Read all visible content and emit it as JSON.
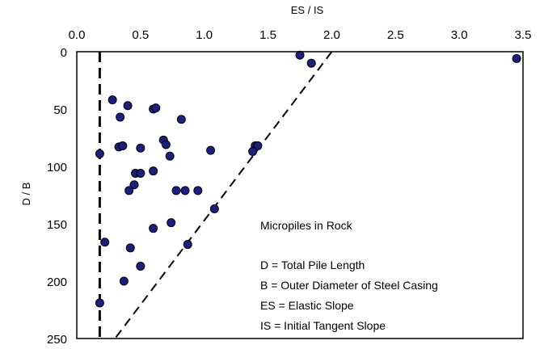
{
  "chart_data": {
    "type": "scatter",
    "title": "",
    "xlabel": "ES / IS",
    "ylabel": "D / B",
    "xlim": [
      0.0,
      3.5
    ],
    "ylim": [
      0,
      250
    ],
    "x_axis_position": "top",
    "y_axis_inverted": true,
    "grid": false,
    "x_ticks": [
      "0.0",
      "0.5",
      "1.0",
      "1.5",
      "2.0",
      "2.5",
      "3.0",
      "3.5"
    ],
    "y_ticks": [
      "0",
      "50",
      "100",
      "150",
      "200",
      "250"
    ],
    "marker_color": "#1a1f80",
    "marker_edge_color": "#000000",
    "points": [
      {
        "x": 1.75,
        "y": 3
      },
      {
        "x": 1.84,
        "y": 10
      },
      {
        "x": 3.45,
        "y": 6
      },
      {
        "x": 0.28,
        "y": 42
      },
      {
        "x": 0.4,
        "y": 47
      },
      {
        "x": 0.6,
        "y": 50
      },
      {
        "x": 0.62,
        "y": 49
      },
      {
        "x": 0.34,
        "y": 57
      },
      {
        "x": 0.82,
        "y": 59
      },
      {
        "x": 0.68,
        "y": 77
      },
      {
        "x": 0.7,
        "y": 81
      },
      {
        "x": 0.33,
        "y": 83
      },
      {
        "x": 0.36,
        "y": 82
      },
      {
        "x": 0.5,
        "y": 84
      },
      {
        "x": 1.05,
        "y": 86
      },
      {
        "x": 1.4,
        "y": 82
      },
      {
        "x": 1.42,
        "y": 82
      },
      {
        "x": 1.38,
        "y": 87
      },
      {
        "x": 0.18,
        "y": 89
      },
      {
        "x": 0.73,
        "y": 91
      },
      {
        "x": 0.46,
        "y": 106
      },
      {
        "x": 0.5,
        "y": 106
      },
      {
        "x": 0.6,
        "y": 104
      },
      {
        "x": 0.45,
        "y": 116
      },
      {
        "x": 0.41,
        "y": 121
      },
      {
        "x": 0.78,
        "y": 121
      },
      {
        "x": 0.85,
        "y": 121
      },
      {
        "x": 0.95,
        "y": 121
      },
      {
        "x": 1.08,
        "y": 137
      },
      {
        "x": 0.74,
        "y": 149
      },
      {
        "x": 0.6,
        "y": 154
      },
      {
        "x": 0.22,
        "y": 166
      },
      {
        "x": 0.87,
        "y": 168
      },
      {
        "x": 0.42,
        "y": 171
      },
      {
        "x": 0.5,
        "y": 187
      },
      {
        "x": 0.37,
        "y": 200
      },
      {
        "x": 0.18,
        "y": 219
      }
    ],
    "reference_lines": [
      {
        "style": "dashed",
        "from": {
          "x": 0.18,
          "y": 0
        },
        "to": {
          "x": 0.18,
          "y": 250
        }
      },
      {
        "style": "dashed",
        "from": {
          "x": 2.0,
          "y": 0
        },
        "to": {
          "x": 0.3,
          "y": 250
        }
      }
    ],
    "annotations": {
      "title": "Micropiles in Rock",
      "lines": [
        "D = Total Pile Length",
        "B = Outer Diameter of Steel Casing",
        "ES = Elastic Slope",
        "IS = Initial Tangent Slope"
      ]
    }
  }
}
